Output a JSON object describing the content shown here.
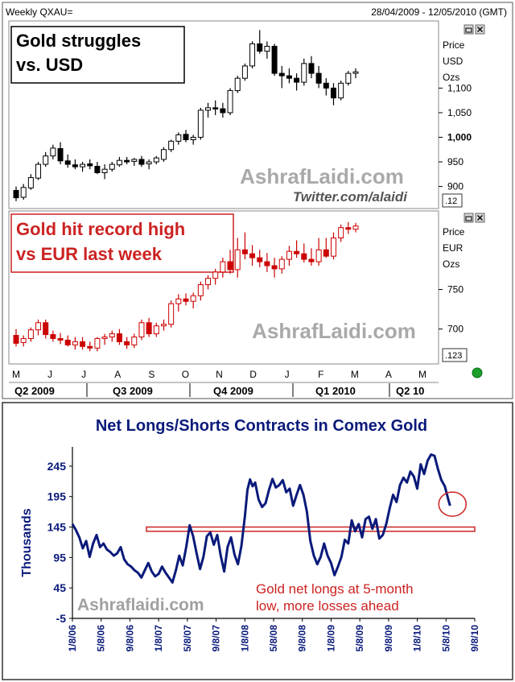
{
  "header": {
    "symbol": "Weekly QXAU=",
    "date_range": "28/04/2009 - 12/05/2010 (GMT)"
  },
  "colors": {
    "usd_up": "#ffffff",
    "usd_down": "#000000",
    "eur_up": "#ffffff",
    "eur_down": "#cc0000",
    "eur_wick": "#cc0000",
    "net_line": "#0a1a7a",
    "annotation_red": "#cc2222",
    "watermark": "#a0a0a0",
    "status_dot": "#1aa02a",
    "title_blue": "#0a1a7a"
  },
  "icons": [
    "restore-icon",
    "close-icon",
    "status-dot-icon"
  ],
  "chart_data": [
    {
      "type": "candlestick",
      "panel": "usd",
      "title": "Gold struggles\nvs. USD",
      "axis_label": [
        "Price",
        "USD",
        "Ozs"
      ],
      "yticks": [
        {
          "value": 900,
          "label": "900"
        },
        {
          "value": 950,
          "label": "950"
        },
        {
          "value": 1000,
          "label": "1,000"
        },
        {
          "value": 1050,
          "label": "1,050"
        },
        {
          "value": 1100,
          "label": "1,100"
        }
      ],
      "ylim": [
        860,
        1230
      ],
      "scale_box": ".12",
      "watermark": "AshrafLaidi.com",
      "watermark2": "Twitter.com/alaidi",
      "candles": [
        [
          892,
          900,
          870,
          877
        ],
        [
          878,
          905,
          873,
          898
        ],
        [
          897,
          925,
          893,
          918
        ],
        [
          917,
          950,
          913,
          945
        ],
        [
          945,
          970,
          940,
          962
        ],
        [
          962,
          985,
          955,
          978
        ],
        [
          977,
          990,
          945,
          952
        ],
        [
          952,
          965,
          938,
          945
        ],
        [
          944,
          955,
          935,
          940
        ],
        [
          940,
          950,
          930,
          945
        ],
        [
          946,
          955,
          935,
          942
        ],
        [
          941,
          950,
          925,
          928
        ],
        [
          928,
          945,
          915,
          935
        ],
        [
          935,
          950,
          930,
          945
        ],
        [
          944,
          960,
          940,
          953
        ],
        [
          953,
          960,
          945,
          950
        ],
        [
          951,
          958,
          942,
          955
        ],
        [
          955,
          962,
          940,
          945
        ],
        [
          946,
          955,
          935,
          950
        ],
        [
          950,
          962,
          945,
          958
        ],
        [
          955,
          980,
          950,
          975
        ],
        [
          975,
          995,
          970,
          992
        ],
        [
          992,
          1010,
          985,
          1005
        ],
        [
          1006,
          1015,
          990,
          995
        ],
        [
          995,
          1005,
          985,
          1000
        ],
        [
          1000,
          1060,
          995,
          1055
        ],
        [
          1055,
          1070,
          1040,
          1060
        ],
        [
          1060,
          1075,
          1045,
          1058
        ],
        [
          1058,
          1070,
          1040,
          1050
        ],
        [
          1050,
          1100,
          1045,
          1095
        ],
        [
          1095,
          1125,
          1090,
          1120
        ],
        [
          1120,
          1150,
          1115,
          1145
        ],
        [
          1145,
          1195,
          1140,
          1190
        ],
        [
          1190,
          1218,
          1170,
          1175
        ],
        [
          1175,
          1195,
          1160,
          1185
        ],
        [
          1185,
          1190,
          1125,
          1130
        ],
        [
          1130,
          1145,
          1100,
          1125
        ],
        [
          1125,
          1140,
          1110,
          1120
        ],
        [
          1120,
          1130,
          1095,
          1112
        ],
        [
          1112,
          1160,
          1105,
          1150
        ],
        [
          1150,
          1165,
          1120,
          1130
        ],
        [
          1130,
          1145,
          1100,
          1110
        ],
        [
          1110,
          1120,
          1085,
          1100
        ],
        [
          1100,
          1110,
          1065,
          1080
        ],
        [
          1080,
          1115,
          1075,
          1110
        ],
        [
          1110,
          1135,
          1105,
          1130
        ],
        [
          1130,
          1140,
          1120,
          1133
        ]
      ]
    },
    {
      "type": "candlestick",
      "panel": "eur",
      "title": "Gold hit record high\nvs EUR last week",
      "axis_label": [
        "Price",
        "EUR",
        "Ozs"
      ],
      "yticks": [
        {
          "value": 700,
          "label": "700"
        },
        {
          "value": 750,
          "label": "750"
        }
      ],
      "ylim": [
        660,
        845
      ],
      "scale_box": ".123",
      "watermark": "AshrafLaidi.com",
      "xticks": [
        "M",
        "J",
        "J",
        "A",
        "S",
        "O",
        "N",
        "D",
        "J",
        "F",
        "M",
        "A",
        "M"
      ],
      "quarters": [
        "Q2 2009",
        "Q3 2009",
        "Q4 2009",
        "Q1 2010",
        "Q2 10"
      ],
      "candles": [
        [
          692,
          700,
          678,
          682
        ],
        [
          683,
          692,
          678,
          688
        ],
        [
          688,
          702,
          684,
          699
        ],
        [
          699,
          712,
          692,
          708
        ],
        [
          708,
          712,
          688,
          693
        ],
        [
          693,
          698,
          684,
          688
        ],
        [
          688,
          695,
          681,
          686
        ],
        [
          686,
          692,
          678,
          680
        ],
        [
          680,
          690,
          674,
          684
        ],
        [
          684,
          690,
          674,
          678
        ],
        [
          678,
          684,
          672,
          676
        ],
        [
          676,
          690,
          672,
          688
        ],
        [
          688,
          694,
          680,
          690
        ],
        [
          690,
          698,
          684,
          694
        ],
        [
          694,
          700,
          680,
          684
        ],
        [
          684,
          690,
          675,
          680
        ],
        [
          680,
          694,
          676,
          690
        ],
        [
          690,
          712,
          686,
          708
        ],
        [
          708,
          714,
          690,
          694
        ],
        [
          694,
          708,
          690,
          704
        ],
        [
          704,
          712,
          698,
          706
        ],
        [
          706,
          736,
          702,
          732
        ],
        [
          732,
          744,
          722,
          738
        ],
        [
          738,
          745,
          730,
          735
        ],
        [
          735,
          746,
          726,
          742
        ],
        [
          742,
          760,
          736,
          756
        ],
        [
          756,
          768,
          750,
          764
        ],
        [
          764,
          776,
          756,
          772
        ],
        [
          772,
          790,
          765,
          785
        ],
        [
          785,
          800,
          770,
          775
        ],
        [
          775,
          815,
          765,
          800
        ],
        [
          800,
          822,
          788,
          795
        ],
        [
          795,
          806,
          780,
          790
        ],
        [
          790,
          800,
          778,
          785
        ],
        [
          785,
          796,
          772,
          780
        ],
        [
          780,
          790,
          765,
          776
        ],
        [
          776,
          792,
          770,
          788
        ],
        [
          788,
          805,
          780,
          798
        ],
        [
          798,
          812,
          790,
          795
        ],
        [
          795,
          808,
          784,
          788
        ],
        [
          788,
          802,
          780,
          785
        ],
        [
          785,
          815,
          780,
          800
        ],
        [
          800,
          815,
          790,
          792
        ],
        [
          792,
          822,
          788,
          815
        ],
        [
          815,
          832,
          810,
          828
        ],
        [
          828,
          835,
          820,
          826
        ],
        [
          826,
          834,
          822,
          830
        ]
      ]
    },
    {
      "type": "line",
      "panel": "net",
      "title": "Net Longs/Shorts Contracts in Comex Gold",
      "ylabel": "Thousands",
      "ylim": [
        -5,
        270
      ],
      "yticks": [
        -5,
        45,
        95,
        145,
        195,
        245
      ],
      "xticks": [
        "1/8/06",
        "5/8/06",
        "9/8/06",
        "1/8/07",
        "5/8/07",
        "9/8/07",
        "1/8/08",
        "5/8/08",
        "9/8/08",
        "1/8/09",
        "5/8/09",
        "9/8/09",
        "1/8/10",
        "5/8/10",
        "9/8/10"
      ],
      "x_start": 2006.0,
      "x_end": 2010.667,
      "band": {
        "label": "",
        "y0": 138,
        "y1": 145
      },
      "annotation": "Gold net longs at 5-month\nlow, more losses ahead",
      "watermark": "Ashraflaidi.com",
      "points": [
        [
          2006.0,
          150
        ],
        [
          2006.04,
          140
        ],
        [
          2006.08,
          128
        ],
        [
          2006.12,
          110
        ],
        [
          2006.16,
          122
        ],
        [
          2006.2,
          96
        ],
        [
          2006.24,
          118
        ],
        [
          2006.28,
          132
        ],
        [
          2006.32,
          112
        ],
        [
          2006.36,
          118
        ],
        [
          2006.4,
          108
        ],
        [
          2006.44,
          104
        ],
        [
          2006.48,
          98
        ],
        [
          2006.52,
          102
        ],
        [
          2006.56,
          112
        ],
        [
          2006.6,
          92
        ],
        [
          2006.64,
          84
        ],
        [
          2006.68,
          80
        ],
        [
          2006.72,
          74
        ],
        [
          2006.76,
          70
        ],
        [
          2006.8,
          62
        ],
        [
          2006.84,
          74
        ],
        [
          2006.88,
          86
        ],
        [
          2006.92,
          72
        ],
        [
          2006.96,
          64
        ],
        [
          2007.0,
          68
        ],
        [
          2007.04,
          80
        ],
        [
          2007.08,
          70
        ],
        [
          2007.12,
          62
        ],
        [
          2007.16,
          54
        ],
        [
          2007.2,
          74
        ],
        [
          2007.24,
          98
        ],
        [
          2007.28,
          82
        ],
        [
          2007.32,
          112
        ],
        [
          2007.36,
          148
        ],
        [
          2007.4,
          130
        ],
        [
          2007.44,
          102
        ],
        [
          2007.48,
          76
        ],
        [
          2007.52,
          96
        ],
        [
          2007.56,
          130
        ],
        [
          2007.6,
          136
        ],
        [
          2007.64,
          116
        ],
        [
          2007.68,
          132
        ],
        [
          2007.72,
          98
        ],
        [
          2007.76,
          72
        ],
        [
          2007.8,
          112
        ],
        [
          2007.84,
          128
        ],
        [
          2007.88,
          100
        ],
        [
          2007.92,
          84
        ],
        [
          2007.96,
          114
        ],
        [
          2008.0,
          162
        ],
        [
          2008.03,
          206
        ],
        [
          2008.06,
          223
        ],
        [
          2008.09,
          212
        ],
        [
          2008.12,
          218
        ],
        [
          2008.16,
          190
        ],
        [
          2008.2,
          178
        ],
        [
          2008.24,
          184
        ],
        [
          2008.28,
          206
        ],
        [
          2008.32,
          224
        ],
        [
          2008.36,
          210
        ],
        [
          2008.4,
          214
        ],
        [
          2008.44,
          222
        ],
        [
          2008.48,
          202
        ],
        [
          2008.52,
          208
        ],
        [
          2008.56,
          180
        ],
        [
          2008.6,
          198
        ],
        [
          2008.64,
          214
        ],
        [
          2008.68,
          198
        ],
        [
          2008.72,
          170
        ],
        [
          2008.76,
          122
        ],
        [
          2008.8,
          98
        ],
        [
          2008.84,
          84
        ],
        [
          2008.88,
          96
        ],
        [
          2008.92,
          118
        ],
        [
          2008.96,
          98
        ],
        [
          2009.0,
          86
        ],
        [
          2009.04,
          66
        ],
        [
          2009.08,
          80
        ],
        [
          2009.12,
          96
        ],
        [
          2009.16,
          124
        ],
        [
          2009.2,
          118
        ],
        [
          2009.24,
          156
        ],
        [
          2009.28,
          138
        ],
        [
          2009.32,
          150
        ],
        [
          2009.36,
          128
        ],
        [
          2009.4,
          158
        ],
        [
          2009.44,
          162
        ],
        [
          2009.48,
          142
        ],
        [
          2009.52,
          158
        ],
        [
          2009.56,
          126
        ],
        [
          2009.6,
          132
        ],
        [
          2009.64,
          150
        ],
        [
          2009.68,
          176
        ],
        [
          2009.72,
          198
        ],
        [
          2009.76,
          186
        ],
        [
          2009.8,
          214
        ],
        [
          2009.84,
          226
        ],
        [
          2009.88,
          218
        ],
        [
          2009.92,
          236
        ],
        [
          2009.96,
          228
        ],
        [
          2010.0,
          208
        ],
        [
          2010.04,
          248
        ],
        [
          2010.08,
          232
        ],
        [
          2010.12,
          254
        ],
        [
          2010.16,
          264
        ],
        [
          2010.2,
          262
        ],
        [
          2010.24,
          240
        ],
        [
          2010.28,
          222
        ],
        [
          2010.32,
          212
        ],
        [
          2010.36,
          190
        ],
        [
          2010.38,
          180
        ]
      ]
    }
  ]
}
